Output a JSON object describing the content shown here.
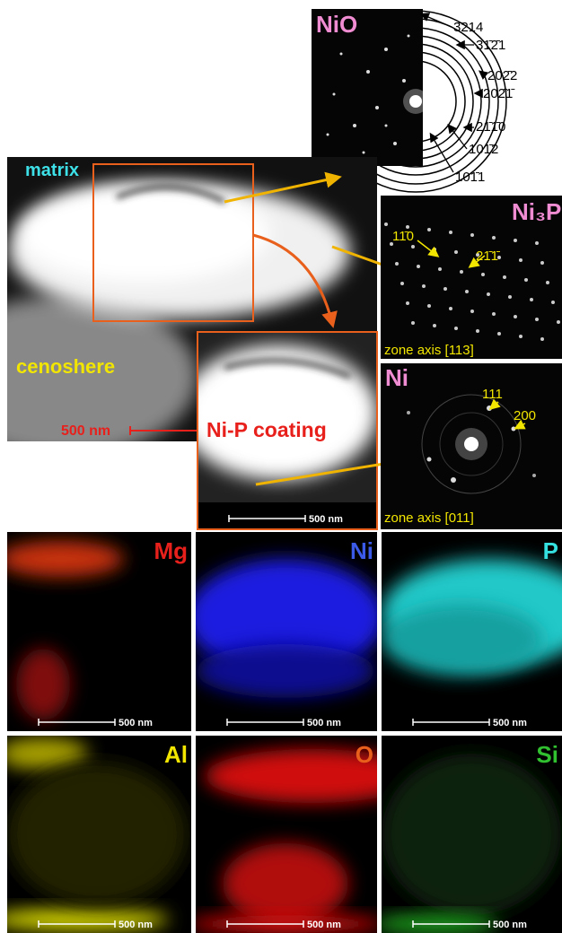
{
  "saed_nio": {
    "label": "NiO",
    "rings": [
      "3̄214",
      "31̄2̄1",
      "202̄2",
      "202̄1̄",
      "21̄1̄0",
      "101̄2",
      "101̄1"
    ]
  },
  "stem": {
    "matrix_label": "matrix",
    "cenosphere_label": "cenoshere",
    "scale_bar": "500 nm"
  },
  "inset": {
    "label": "Ni-P coating",
    "scale_bar": "500 nm"
  },
  "saed_ni3p": {
    "label": "Ni₃P",
    "spots": [
      "11̄0",
      "21̄1̄"
    ],
    "zone_axis": "zone axis [113]"
  },
  "saed_ni": {
    "label": "Ni",
    "spots": [
      "111",
      "200"
    ],
    "zone_axis": "zone axis [011]"
  },
  "maps": [
    {
      "label": "Mg",
      "scale_bar": "500 nm"
    },
    {
      "label": "Ni",
      "scale_bar": "500 nm"
    },
    {
      "label": "P",
      "scale_bar": "500 nm"
    },
    {
      "label": "Al",
      "scale_bar": "500 nm"
    },
    {
      "label": "O",
      "scale_bar": "500 nm"
    },
    {
      "label": "Si",
      "scale_bar": "500 nm"
    }
  ]
}
